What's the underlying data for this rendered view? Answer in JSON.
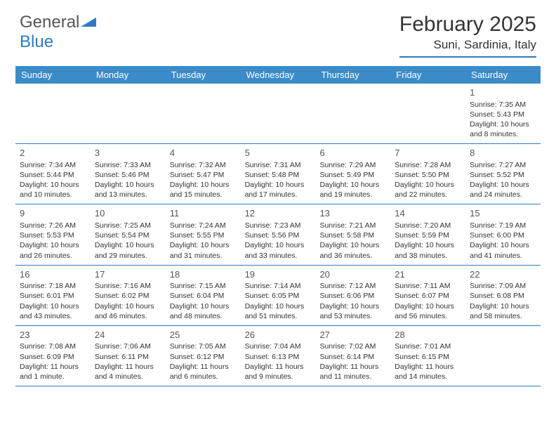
{
  "logo": {
    "text1": "General",
    "text2": "Blue"
  },
  "title": "February 2025",
  "location": "Suni, Sardinia, Italy",
  "colors": {
    "header_bg": "#3b8bc9",
    "accent": "#2f7bbf",
    "text": "#333333",
    "logo_gray": "#555555",
    "background": "#ffffff"
  },
  "typography": {
    "title_fontsize": 30,
    "location_fontsize": 17,
    "dayheader_fontsize": 13,
    "daynum_fontsize": 13,
    "cell_fontsize": 10.5
  },
  "day_names": [
    "Sunday",
    "Monday",
    "Tuesday",
    "Wednesday",
    "Thursday",
    "Friday",
    "Saturday"
  ],
  "weeks": [
    [
      null,
      null,
      null,
      null,
      null,
      null,
      {
        "n": "1",
        "sunrise": "Sunrise: 7:35 AM",
        "sunset": "Sunset: 5:43 PM",
        "daylight": "Daylight: 10 hours and 8 minutes."
      }
    ],
    [
      {
        "n": "2",
        "sunrise": "Sunrise: 7:34 AM",
        "sunset": "Sunset: 5:44 PM",
        "daylight": "Daylight: 10 hours and 10 minutes."
      },
      {
        "n": "3",
        "sunrise": "Sunrise: 7:33 AM",
        "sunset": "Sunset: 5:46 PM",
        "daylight": "Daylight: 10 hours and 13 minutes."
      },
      {
        "n": "4",
        "sunrise": "Sunrise: 7:32 AM",
        "sunset": "Sunset: 5:47 PM",
        "daylight": "Daylight: 10 hours and 15 minutes."
      },
      {
        "n": "5",
        "sunrise": "Sunrise: 7:31 AM",
        "sunset": "Sunset: 5:48 PM",
        "daylight": "Daylight: 10 hours and 17 minutes."
      },
      {
        "n": "6",
        "sunrise": "Sunrise: 7:29 AM",
        "sunset": "Sunset: 5:49 PM",
        "daylight": "Daylight: 10 hours and 19 minutes."
      },
      {
        "n": "7",
        "sunrise": "Sunrise: 7:28 AM",
        "sunset": "Sunset: 5:50 PM",
        "daylight": "Daylight: 10 hours and 22 minutes."
      },
      {
        "n": "8",
        "sunrise": "Sunrise: 7:27 AM",
        "sunset": "Sunset: 5:52 PM",
        "daylight": "Daylight: 10 hours and 24 minutes."
      }
    ],
    [
      {
        "n": "9",
        "sunrise": "Sunrise: 7:26 AM",
        "sunset": "Sunset: 5:53 PM",
        "daylight": "Daylight: 10 hours and 26 minutes."
      },
      {
        "n": "10",
        "sunrise": "Sunrise: 7:25 AM",
        "sunset": "Sunset: 5:54 PM",
        "daylight": "Daylight: 10 hours and 29 minutes."
      },
      {
        "n": "11",
        "sunrise": "Sunrise: 7:24 AM",
        "sunset": "Sunset: 5:55 PM",
        "daylight": "Daylight: 10 hours and 31 minutes."
      },
      {
        "n": "12",
        "sunrise": "Sunrise: 7:23 AM",
        "sunset": "Sunset: 5:56 PM",
        "daylight": "Daylight: 10 hours and 33 minutes."
      },
      {
        "n": "13",
        "sunrise": "Sunrise: 7:21 AM",
        "sunset": "Sunset: 5:58 PM",
        "daylight": "Daylight: 10 hours and 36 minutes."
      },
      {
        "n": "14",
        "sunrise": "Sunrise: 7:20 AM",
        "sunset": "Sunset: 5:59 PM",
        "daylight": "Daylight: 10 hours and 38 minutes."
      },
      {
        "n": "15",
        "sunrise": "Sunrise: 7:19 AM",
        "sunset": "Sunset: 6:00 PM",
        "daylight": "Daylight: 10 hours and 41 minutes."
      }
    ],
    [
      {
        "n": "16",
        "sunrise": "Sunrise: 7:18 AM",
        "sunset": "Sunset: 6:01 PM",
        "daylight": "Daylight: 10 hours and 43 minutes."
      },
      {
        "n": "17",
        "sunrise": "Sunrise: 7:16 AM",
        "sunset": "Sunset: 6:02 PM",
        "daylight": "Daylight: 10 hours and 46 minutes."
      },
      {
        "n": "18",
        "sunrise": "Sunrise: 7:15 AM",
        "sunset": "Sunset: 6:04 PM",
        "daylight": "Daylight: 10 hours and 48 minutes."
      },
      {
        "n": "19",
        "sunrise": "Sunrise: 7:14 AM",
        "sunset": "Sunset: 6:05 PM",
        "daylight": "Daylight: 10 hours and 51 minutes."
      },
      {
        "n": "20",
        "sunrise": "Sunrise: 7:12 AM",
        "sunset": "Sunset: 6:06 PM",
        "daylight": "Daylight: 10 hours and 53 minutes."
      },
      {
        "n": "21",
        "sunrise": "Sunrise: 7:11 AM",
        "sunset": "Sunset: 6:07 PM",
        "daylight": "Daylight: 10 hours and 56 minutes."
      },
      {
        "n": "22",
        "sunrise": "Sunrise: 7:09 AM",
        "sunset": "Sunset: 6:08 PM",
        "daylight": "Daylight: 10 hours and 58 minutes."
      }
    ],
    [
      {
        "n": "23",
        "sunrise": "Sunrise: 7:08 AM",
        "sunset": "Sunset: 6:09 PM",
        "daylight": "Daylight: 11 hours and 1 minute."
      },
      {
        "n": "24",
        "sunrise": "Sunrise: 7:06 AM",
        "sunset": "Sunset: 6:11 PM",
        "daylight": "Daylight: 11 hours and 4 minutes."
      },
      {
        "n": "25",
        "sunrise": "Sunrise: 7:05 AM",
        "sunset": "Sunset: 6:12 PM",
        "daylight": "Daylight: 11 hours and 6 minutes."
      },
      {
        "n": "26",
        "sunrise": "Sunrise: 7:04 AM",
        "sunset": "Sunset: 6:13 PM",
        "daylight": "Daylight: 11 hours and 9 minutes."
      },
      {
        "n": "27",
        "sunrise": "Sunrise: 7:02 AM",
        "sunset": "Sunset: 6:14 PM",
        "daylight": "Daylight: 11 hours and 11 minutes."
      },
      {
        "n": "28",
        "sunrise": "Sunrise: 7:01 AM",
        "sunset": "Sunset: 6:15 PM",
        "daylight": "Daylight: 11 hours and 14 minutes."
      },
      null
    ]
  ]
}
